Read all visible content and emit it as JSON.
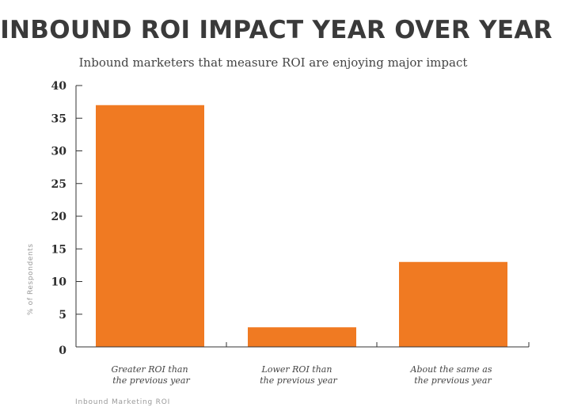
{
  "chart_data": {
    "type": "bar",
    "title": "INBOUND ROI IMPACT YEAR OVER YEAR",
    "subtitle": "Inbound marketers that measure ROI are enjoying major impact",
    "ylabel": "% of Respondents",
    "xlabel": "",
    "ylim": [
      0,
      40
    ],
    "yticks": [
      0,
      5,
      10,
      15,
      20,
      25,
      30,
      35,
      40
    ],
    "categories": [
      [
        "Greater ROI than",
        "the previous year"
      ],
      [
        "Lower ROI than",
        "the previous year"
      ],
      [
        "About the same as",
        "the previous year"
      ]
    ],
    "values": [
      37,
      3,
      13
    ],
    "bar_color": "#f07a22",
    "axis_color": "#333333",
    "grid": false,
    "footer": "Inbound Marketing ROI"
  }
}
